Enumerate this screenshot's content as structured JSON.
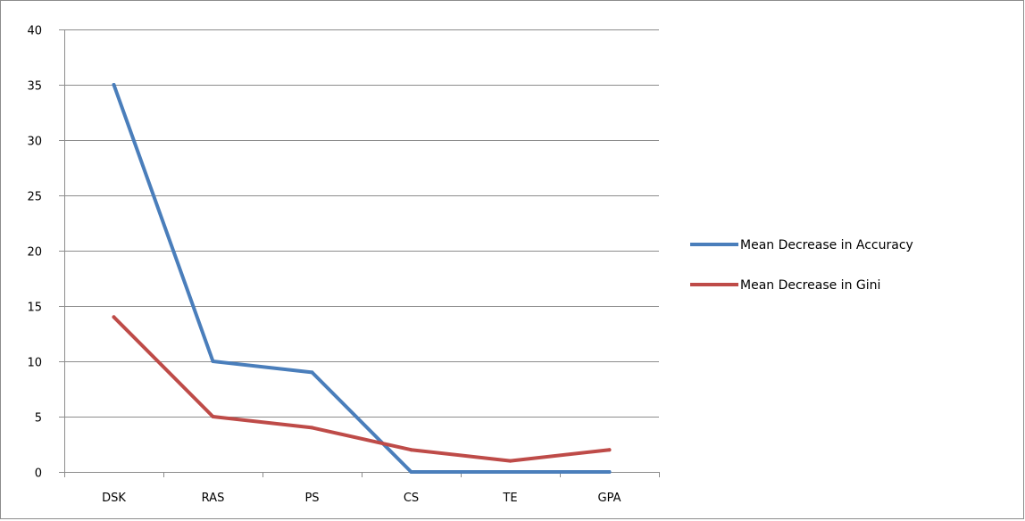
{
  "chart_data": {
    "type": "line",
    "categories": [
      "DSK",
      "RAS",
      "PS",
      "CS",
      "TE",
      "GPA"
    ],
    "series": [
      {
        "name": "Mean Decrease in Accuracy",
        "color": "#4a7ebb",
        "values": [
          35,
          10,
          9,
          0,
          0,
          0
        ]
      },
      {
        "name": "Mean Decrease in Gini",
        "color": "#be4b48",
        "values": [
          14,
          5,
          4,
          2,
          1,
          2
        ]
      }
    ],
    "ylim": [
      0,
      40
    ],
    "yticks": [
      0,
      5,
      10,
      15,
      20,
      25,
      30,
      35,
      40
    ],
    "grid": true,
    "legend": "right"
  }
}
